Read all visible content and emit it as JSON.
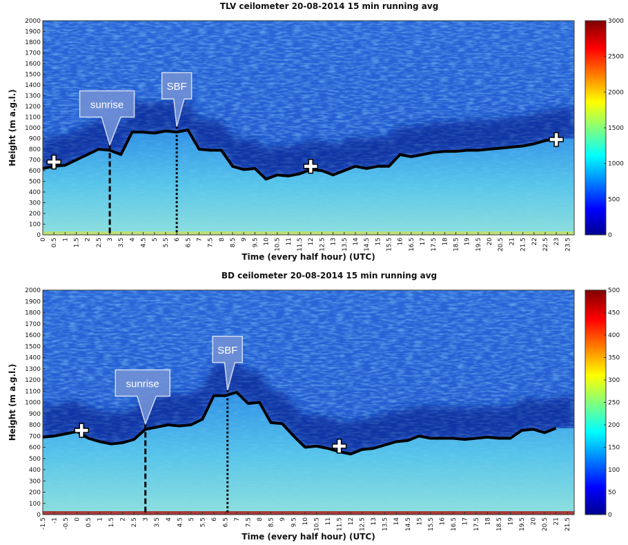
{
  "chart_data": [
    {
      "type": "heatmap-line",
      "title": "TLV ceilometer 20-08-2014 15 min running avg",
      "xlabel": "Time (every half hour) (UTC)",
      "ylabel": "Height (m a.g.l.)",
      "xlim": [
        0,
        23.8
      ],
      "xticks": [
        0,
        0.5,
        1,
        1.5,
        2,
        2.5,
        3,
        3.5,
        4,
        4.5,
        5,
        5.5,
        6,
        6.5,
        7,
        7.5,
        8,
        8.5,
        9,
        9.5,
        10,
        10.5,
        11,
        11.5,
        12,
        12.5,
        13,
        13.5,
        14,
        14.5,
        15,
        15.5,
        16,
        16.5,
        17,
        17.5,
        18,
        18.5,
        19,
        19.5,
        20,
        20.5,
        21,
        21.5,
        22,
        22.5,
        23,
        23.5
      ],
      "ylim": [
        0,
        2000
      ],
      "yticks": [
        0,
        100,
        200,
        300,
        400,
        500,
        600,
        700,
        800,
        900,
        1000,
        1100,
        1200,
        1300,
        1400,
        1500,
        1600,
        1700,
        1800,
        1900,
        2000
      ],
      "clim": [
        0,
        3000
      ],
      "colorbar_ticks": [
        0,
        500,
        1000,
        1500,
        2000,
        2500,
        3000
      ],
      "series": [
        {
          "color": "#000000",
          "x": [
            0,
            0.5,
            1,
            1.5,
            2,
            2.5,
            3,
            3.5,
            4,
            4.5,
            5,
            5.5,
            6,
            6.5,
            7,
            7.5,
            8,
            8.5,
            9,
            9.5,
            10,
            10.5,
            11,
            11.5,
            12,
            12.5,
            13,
            13.5,
            14,
            14.5,
            15,
            15.5,
            16,
            16.5,
            17,
            17.5,
            18,
            18.5,
            19,
            19.5,
            20,
            20.5,
            21,
            21.5,
            22,
            22.5,
            23
          ],
          "values": [
            620,
            640,
            650,
            700,
            750,
            800,
            790,
            750,
            960,
            960,
            950,
            970,
            960,
            980,
            800,
            790,
            790,
            640,
            610,
            620,
            520,
            560,
            550,
            570,
            610,
            600,
            560,
            600,
            640,
            620,
            640,
            640,
            750,
            730,
            750,
            770,
            780,
            780,
            790,
            790,
            800,
            810,
            820,
            830,
            850,
            880,
            900
          ]
        }
      ],
      "annotations": [
        {
          "text": "sunrise",
          "x": 3
        },
        {
          "text": "SBF",
          "x": 6
        }
      ],
      "markers": [
        {
          "x": 0.5,
          "y": 680
        },
        {
          "x": 12,
          "y": 640
        },
        {
          "x": 23,
          "y": 890
        }
      ]
    },
    {
      "type": "heatmap-line",
      "title": "BD ceilometer 20-08-2014 15 min running avg",
      "xlabel": "Time (every half hour) (UTC)",
      "ylabel": "Height (m a.g.l.)",
      "xlim": [
        -1.5,
        21.8
      ],
      "xticks": [
        -1.5,
        -1,
        -0.5,
        0,
        0.5,
        1,
        1.5,
        2,
        2.5,
        3,
        3.5,
        4,
        4.5,
        5,
        5.5,
        6,
        6.5,
        7,
        7.5,
        8,
        8.5,
        9,
        9.5,
        10,
        10.5,
        11,
        11.5,
        12,
        12.5,
        13,
        13.5,
        14,
        14.5,
        15,
        15.5,
        16,
        16.5,
        17,
        17.5,
        18,
        18.5,
        19,
        19.5,
        20,
        20.5,
        21,
        21.5
      ],
      "ylim": [
        0,
        2000
      ],
      "yticks": [
        0,
        100,
        200,
        300,
        400,
        500,
        600,
        700,
        800,
        900,
        1000,
        1100,
        1200,
        1300,
        1400,
        1500,
        1600,
        1700,
        1800,
        1900,
        2000
      ],
      "clim": [
        0,
        500
      ],
      "colorbar_ticks": [
        0,
        50,
        100,
        150,
        200,
        250,
        300,
        350,
        400,
        450,
        500
      ],
      "series": [
        {
          "color": "#000000",
          "x": [
            -1.5,
            -1,
            -0.5,
            0,
            0.5,
            1,
            1.5,
            2,
            2.5,
            3,
            3.5,
            4,
            4.5,
            5,
            5.5,
            6,
            6.5,
            7,
            7.5,
            8,
            8.5,
            9,
            9.5,
            10,
            10.5,
            11,
            11.5,
            12,
            12.5,
            13,
            13.5,
            14,
            14.5,
            15,
            15.5,
            16,
            16.5,
            17,
            17.5,
            18,
            18.5,
            19,
            19.5,
            20,
            20.5,
            21
          ],
          "values": [
            690,
            700,
            720,
            740,
            680,
            650,
            630,
            640,
            670,
            760,
            780,
            800,
            790,
            800,
            850,
            1060,
            1060,
            1090,
            990,
            1000,
            820,
            810,
            700,
            600,
            610,
            590,
            560,
            540,
            580,
            590,
            620,
            650,
            660,
            700,
            680,
            680,
            680,
            670,
            680,
            690,
            680,
            680,
            750,
            760,
            730,
            770
          ]
        }
      ],
      "annotations": [
        {
          "text": "sunrise",
          "x": 3
        },
        {
          "text": "SBF",
          "x": 6.6
        }
      ],
      "markers": [
        {
          "x": 0.2,
          "y": 750
        },
        {
          "x": 11.5,
          "y": 610
        }
      ]
    }
  ]
}
